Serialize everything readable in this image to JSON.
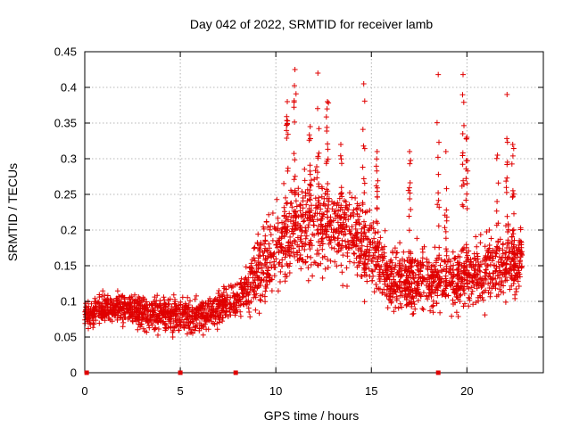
{
  "chart_data": {
    "type": "scatter",
    "title": "Day 042 of 2022, SRMTID for receiver lamb",
    "xlabel": "GPS time / hours",
    "ylabel": "SRMTID / TECUs",
    "xlim": [
      0,
      24
    ],
    "ylim": [
      0,
      0.45
    ],
    "x_ticks": [
      0,
      5,
      10,
      15,
      20
    ],
    "x_tick_labels": [
      "0",
      "5",
      "10",
      "15",
      "20"
    ],
    "y_ticks": [
      0,
      0.05,
      0.1,
      0.15,
      0.2,
      0.25,
      0.3,
      0.35,
      0.4,
      0.45
    ],
    "y_tick_labels": [
      "0",
      "0.05",
      "0.1",
      "0.15",
      "0.2",
      "0.25",
      "0.3",
      "0.35",
      "0.4",
      "0.45"
    ],
    "grid": true,
    "series": [
      {
        "name": "SRMTID",
        "marker": "plus",
        "color": "#e00000",
        "x_range_hours": [
          0,
          22.9
        ],
        "profile": [
          {
            "x": 0.0,
            "y": 0.08
          },
          {
            "x": 1.0,
            "y": 0.09
          },
          {
            "x": 2.0,
            "y": 0.09
          },
          {
            "x": 3.0,
            "y": 0.085
          },
          {
            "x": 4.0,
            "y": 0.08
          },
          {
            "x": 5.0,
            "y": 0.08
          },
          {
            "x": 6.0,
            "y": 0.08
          },
          {
            "x": 7.0,
            "y": 0.09
          },
          {
            "x": 8.0,
            "y": 0.1
          },
          {
            "x": 9.0,
            "y": 0.14
          },
          {
            "x": 10.0,
            "y": 0.17
          },
          {
            "x": 11.0,
            "y": 0.2
          },
          {
            "x": 12.0,
            "y": 0.21
          },
          {
            "x": 13.0,
            "y": 0.2
          },
          {
            "x": 14.0,
            "y": 0.19
          },
          {
            "x": 15.0,
            "y": 0.17
          },
          {
            "x": 16.0,
            "y": 0.13
          },
          {
            "x": 17.0,
            "y": 0.13
          },
          {
            "x": 18.0,
            "y": 0.13
          },
          {
            "x": 19.0,
            "y": 0.13
          },
          {
            "x": 20.0,
            "y": 0.13
          },
          {
            "x": 21.0,
            "y": 0.14
          },
          {
            "x": 22.0,
            "y": 0.15
          },
          {
            "x": 22.9,
            "y": 0.16
          }
        ],
        "spread": [
          {
            "x": 0.0,
            "y": 0.02
          },
          {
            "x": 8.0,
            "y": 0.025
          },
          {
            "x": 9.0,
            "y": 0.05
          },
          {
            "x": 11.0,
            "y": 0.07
          },
          {
            "x": 15.0,
            "y": 0.06
          },
          {
            "x": 16.0,
            "y": 0.045
          },
          {
            "x": 23.0,
            "y": 0.045
          }
        ],
        "outlier_columns": [
          {
            "x": 10.6,
            "y_top": 0.38
          },
          {
            "x": 11.0,
            "y_top": 0.425
          },
          {
            "x": 11.8,
            "y_top": 0.345
          },
          {
            "x": 12.2,
            "y_top": 0.42
          },
          {
            "x": 12.7,
            "y_top": 0.38
          },
          {
            "x": 13.4,
            "y_top": 0.32
          },
          {
            "x": 14.6,
            "y_top": 0.405
          },
          {
            "x": 15.3,
            "y_top": 0.31
          },
          {
            "x": 17.0,
            "y_top": 0.31
          },
          {
            "x": 18.5,
            "y_top": 0.418
          },
          {
            "x": 18.9,
            "y_top": 0.31
          },
          {
            "x": 19.8,
            "y_top": 0.418
          },
          {
            "x": 20.0,
            "y_top": 0.33
          },
          {
            "x": 21.6,
            "y_top": 0.305
          },
          {
            "x": 22.1,
            "y_top": 0.39
          },
          {
            "x": 22.4,
            "y_top": 0.32
          }
        ],
        "note": "About 2,700 individual '+' markers; per-hour mean level and spread recorded above."
      }
    ],
    "gap_markers_x": [
      0.1,
      5.0,
      7.9,
      18.5
    ]
  }
}
